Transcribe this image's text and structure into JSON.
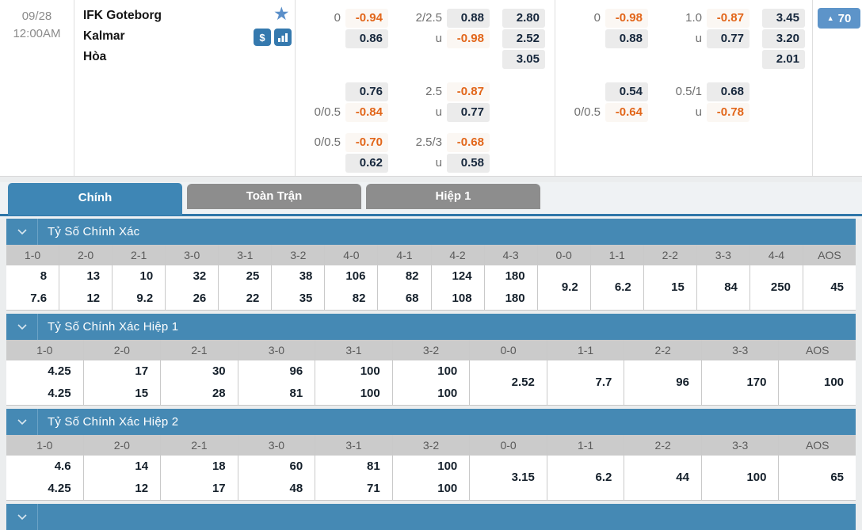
{
  "colors": {
    "accent_blue": "#3e86b5",
    "section_bar_blue": "#4589b4",
    "odds_negative_orange": "#e2661a",
    "odds_chip_gray": "#ebebeb",
    "tab_inactive_gray": "#8d8d8d",
    "pick_button_blue": "#5d94c9",
    "icon_blue": "#3579ae"
  },
  "icons": {
    "favorite": "star-icon",
    "money": "dollar-icon",
    "stats": "bar-chart-icon",
    "collapse": "chevron-down-icon",
    "pick_up": "triangle-up-icon"
  },
  "match": {
    "date": "09/28",
    "time": "12:00AM",
    "teams": [
      "IFK Goteborg",
      "Kalmar"
    ],
    "draw": "Hòa",
    "pick_count": "70",
    "blocks": [
      {
        "rows": [
          {
            "hcp": [
              {
                "label": "0",
                "val": "-0.94"
              },
              {
                "label": "",
                "val": "0.86"
              }
            ],
            "ou": [
              {
                "label": "2/2.5",
                "val": "0.88"
              },
              {
                "label": "u",
                "val": "-0.98"
              }
            ],
            "x12": [
              "2.80",
              "2.52",
              "3.05"
            ]
          },
          {
            "hcp": [
              {
                "label": "",
                "val": "0.76"
              },
              {
                "label": "0/0.5",
                "val": "-0.84"
              }
            ],
            "ou": [
              {
                "label": "2.5",
                "val": "-0.87"
              },
              {
                "label": "u",
                "val": "0.77"
              }
            ],
            "x12": []
          },
          {
            "hcp": [
              {
                "label": "0/0.5",
                "val": "-0.70"
              },
              {
                "label": "",
                "val": "0.62"
              }
            ],
            "ou": [
              {
                "label": "2.5/3",
                "val": "-0.68"
              },
              {
                "label": "u",
                "val": "0.58"
              }
            ],
            "x12": []
          }
        ]
      },
      {
        "rows": [
          {
            "hcp": [
              {
                "label": "0",
                "val": "-0.98"
              },
              {
                "label": "",
                "val": "0.88"
              }
            ],
            "ou": [
              {
                "label": "1.0",
                "val": "-0.87"
              },
              {
                "label": "u",
                "val": "0.77"
              }
            ],
            "x12": [
              "3.45",
              "3.20",
              "2.01"
            ]
          },
          {
            "hcp": [
              {
                "label": "",
                "val": "0.54"
              },
              {
                "label": "0/0.5",
                "val": "-0.64"
              }
            ],
            "ou": [
              {
                "label": "0.5/1",
                "val": "0.68"
              },
              {
                "label": "u",
                "val": "-0.78"
              }
            ],
            "x12": []
          }
        ]
      }
    ]
  },
  "tabs": [
    {
      "label": "Chính",
      "active": true
    },
    {
      "label": "Toàn Trận",
      "active": false
    },
    {
      "label": "Hiệp 1",
      "active": false
    }
  ],
  "sections": [
    {
      "title": "Tỷ Số Chính Xác",
      "columns": [
        "1-0",
        "2-0",
        "2-1",
        "3-0",
        "3-1",
        "3-2",
        "4-0",
        "4-1",
        "4-2",
        "4-3",
        "0-0",
        "1-1",
        "2-2",
        "3-3",
        "4-4",
        "AOS"
      ],
      "values": [
        [
          "8",
          "7.6"
        ],
        [
          "13",
          "12"
        ],
        [
          "10",
          "9.2"
        ],
        [
          "32",
          "26"
        ],
        [
          "25",
          "22"
        ],
        [
          "38",
          "35"
        ],
        [
          "106",
          "82"
        ],
        [
          "82",
          "68"
        ],
        [
          "124",
          "108"
        ],
        [
          "180",
          "180"
        ],
        [
          "9.2"
        ],
        [
          "6.2"
        ],
        [
          "15"
        ],
        [
          "84"
        ],
        [
          "250"
        ],
        [
          "45"
        ]
      ]
    },
    {
      "title": "Tỷ Số Chính Xác Hiệp 1",
      "columns": [
        "1-0",
        "2-0",
        "2-1",
        "3-0",
        "3-1",
        "3-2",
        "0-0",
        "1-1",
        "2-2",
        "3-3",
        "AOS"
      ],
      "values": [
        [
          "4.25",
          "4.25"
        ],
        [
          "17",
          "15"
        ],
        [
          "30",
          "28"
        ],
        [
          "96",
          "81"
        ],
        [
          "100",
          "100"
        ],
        [
          "100",
          "100"
        ],
        [
          "2.52"
        ],
        [
          "7.7"
        ],
        [
          "96"
        ],
        [
          "170"
        ],
        [
          "100"
        ]
      ]
    },
    {
      "title": "Tỷ Số Chính Xác Hiệp 2",
      "columns": [
        "1-0",
        "2-0",
        "2-1",
        "3-0",
        "3-1",
        "3-2",
        "0-0",
        "1-1",
        "2-2",
        "3-3",
        "AOS"
      ],
      "values": [
        [
          "4.6",
          "4.25"
        ],
        [
          "14",
          "12"
        ],
        [
          "18",
          "17"
        ],
        [
          "60",
          "48"
        ],
        [
          "81",
          "71"
        ],
        [
          "100",
          "100"
        ],
        [
          "3.15"
        ],
        [
          "6.2"
        ],
        [
          "44"
        ],
        [
          "100"
        ],
        [
          "65"
        ]
      ]
    }
  ]
}
